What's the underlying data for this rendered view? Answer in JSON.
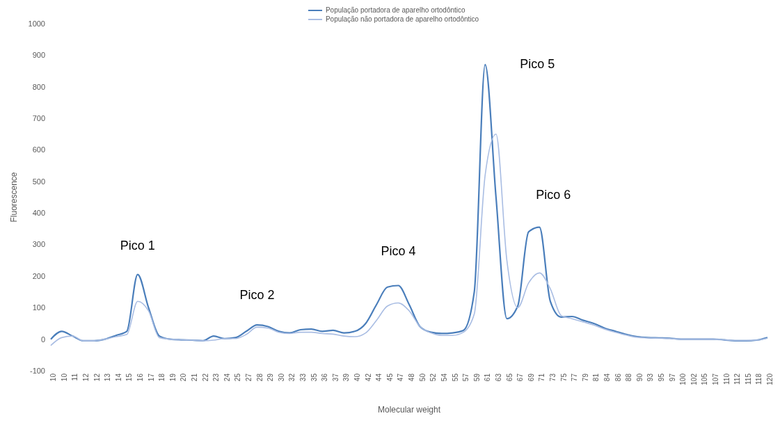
{
  "chart_data": {
    "type": "line",
    "xlabel": "Molecular weight",
    "ylabel": "Fluorescence",
    "categories": [
      "10",
      "10",
      "11",
      "12",
      "12",
      "13",
      "14",
      "15",
      "16",
      "17",
      "18",
      "19",
      "20",
      "21",
      "22",
      "23",
      "24",
      "25",
      "27",
      "28",
      "29",
      "30",
      "32",
      "33",
      "35",
      "36",
      "37",
      "39",
      "40",
      "42",
      "44",
      "45",
      "47",
      "48",
      "50",
      "52",
      "54",
      "55",
      "57",
      "59",
      "61",
      "63",
      "65",
      "67",
      "69",
      "71",
      "73",
      "75",
      "77",
      "79",
      "81",
      "84",
      "86",
      "88",
      "90",
      "93",
      "95",
      "97",
      "100",
      "102",
      "105",
      "107",
      "110",
      "112",
      "115",
      "118",
      "120"
    ],
    "series": [
      {
        "name": "População portadora de aparelho ortodôntico",
        "color": "#4a7ebb",
        "values": [
          0,
          25,
          10,
          -5,
          -5,
          0,
          12,
          25,
          205,
          100,
          10,
          0,
          -2,
          -3,
          -5,
          10,
          2,
          5,
          25,
          45,
          40,
          25,
          20,
          30,
          32,
          25,
          28,
          20,
          25,
          50,
          110,
          165,
          170,
          110,
          40,
          22,
          18,
          20,
          28,
          150,
          870,
          450,
          65,
          105,
          340,
          355,
          120,
          70,
          72,
          60,
          50,
          35,
          25,
          15,
          8,
          5,
          4,
          3,
          0,
          0,
          0,
          0,
          -2,
          -5,
          -5,
          -3,
          5
        ]
      },
      {
        "name": "População não portadora de aparelho ortodôntico",
        "color": "#a9bde3",
        "values": [
          -20,
          5,
          10,
          -5,
          -5,
          0,
          8,
          15,
          120,
          90,
          5,
          0,
          -2,
          -3,
          -5,
          -3,
          2,
          2,
          15,
          38,
          35,
          22,
          18,
          22,
          22,
          18,
          16,
          10,
          8,
          20,
          60,
          105,
          115,
          90,
          40,
          20,
          12,
          12,
          22,
          80,
          520,
          650,
          250,
          100,
          178,
          210,
          160,
          75,
          65,
          55,
          45,
          32,
          22,
          13,
          6,
          4,
          3,
          2,
          0,
          0,
          0,
          0,
          -2,
          -4,
          -4,
          -3,
          3
        ]
      }
    ],
    "ylim": [
      -100,
      1000
    ],
    "yticks": [
      -100,
      0,
      100,
      200,
      300,
      400,
      500,
      600,
      700,
      800,
      900,
      1000
    ],
    "legend": "top",
    "marker": "none",
    "line_style": "solid",
    "annotations": [
      {
        "text": "Pico 1",
        "x": "16",
        "y": 205
      },
      {
        "text": "Pico 2",
        "x": "28",
        "y": 45
      },
      {
        "text": "Pico 4",
        "x": "47",
        "y": 170
      },
      {
        "text": "Pico 5",
        "x": "61",
        "y": 870
      },
      {
        "text": "Pico 6",
        "x": "71",
        "y": 355
      }
    ]
  }
}
